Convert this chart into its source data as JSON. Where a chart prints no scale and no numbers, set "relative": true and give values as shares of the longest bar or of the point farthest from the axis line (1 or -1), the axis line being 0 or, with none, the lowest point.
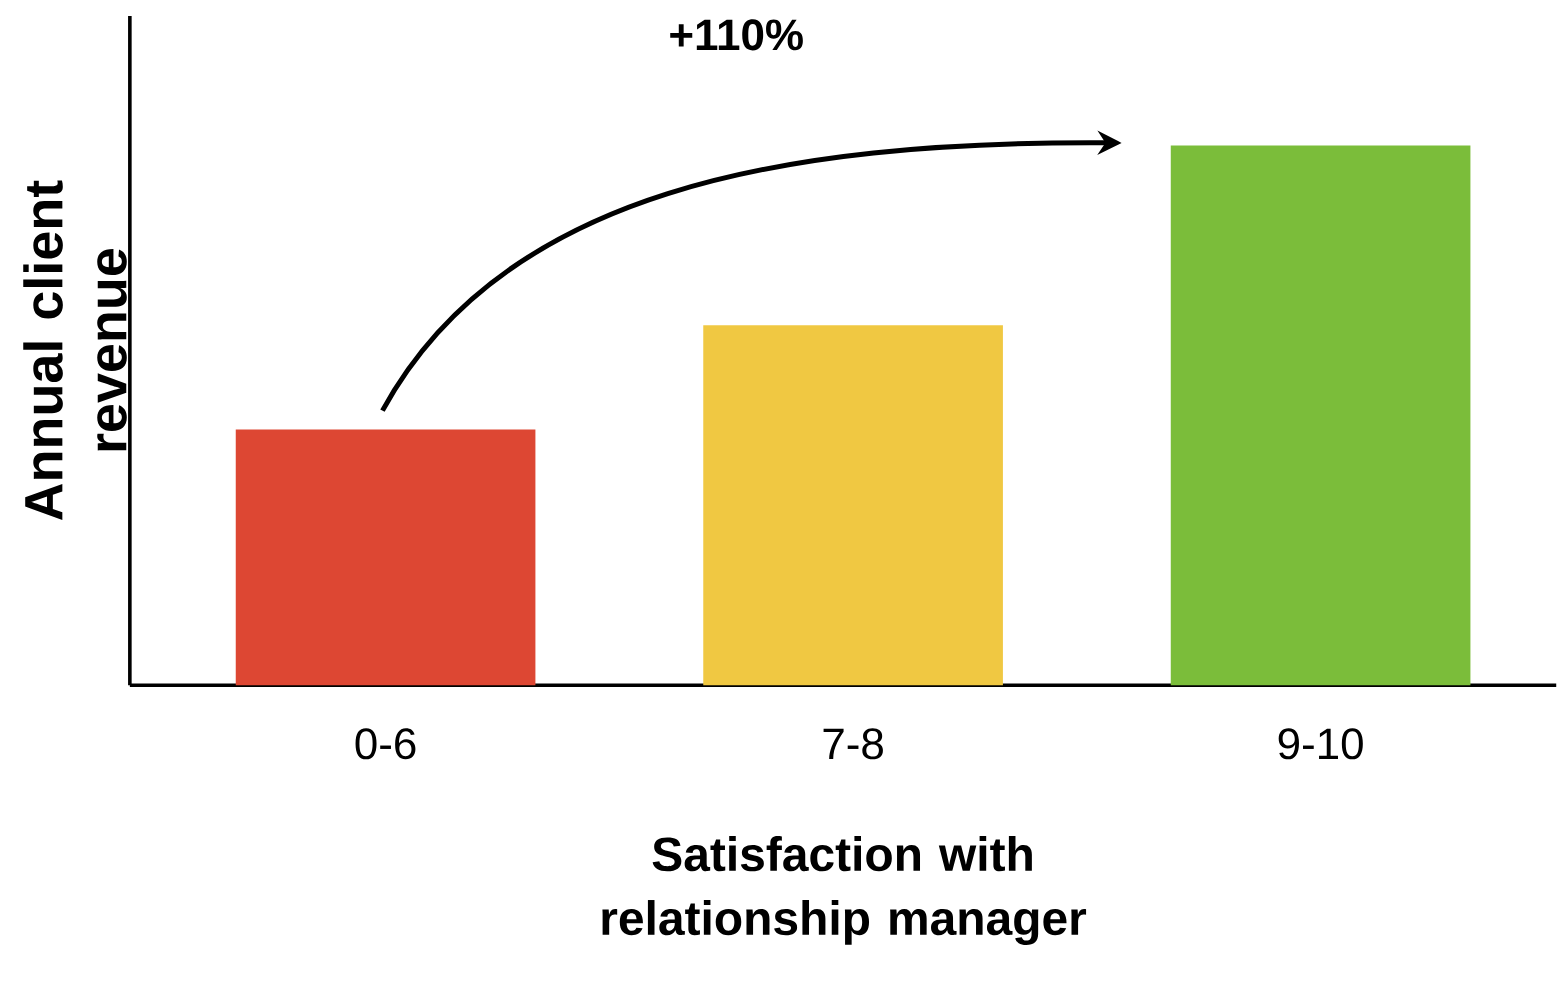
{
  "chart_data": {
    "type": "bar",
    "relative": true,
    "categories": [
      "0-6",
      "7-8",
      "9-10"
    ],
    "values": [
      0.474,
      0.667,
      1
    ],
    "colors": [
      "#dd4733",
      "#f0c842",
      "#7bbd3a"
    ],
    "xlabel": "Satisfaction with relationship manager",
    "ylabel": "Annual client revenue",
    "annotations": [
      "+110%"
    ]
  }
}
